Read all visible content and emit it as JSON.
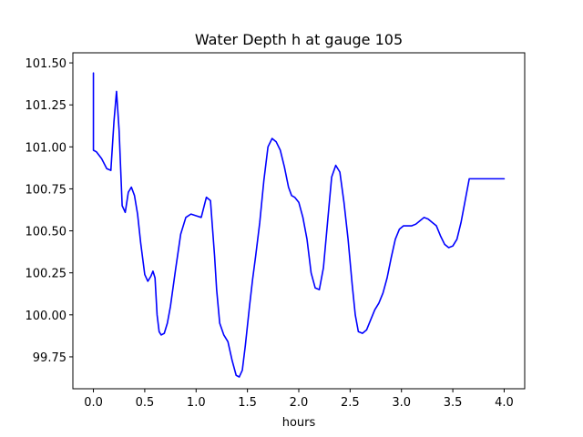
{
  "chart_data": {
    "type": "line",
    "title": "Water Depth h at gauge 105",
    "xlabel": "hours",
    "ylabel": "",
    "xlim": [
      -0.2,
      4.2
    ],
    "ylim": [
      99.56,
      101.56
    ],
    "xticks": [
      0.0,
      0.5,
      1.0,
      1.5,
      2.0,
      2.5,
      3.0,
      3.5,
      4.0
    ],
    "xtick_labels": [
      "0.0",
      "0.5",
      "1.0",
      "1.5",
      "2.0",
      "2.5",
      "3.0",
      "3.5",
      "4.0"
    ],
    "yticks": [
      99.75,
      100.0,
      100.25,
      100.5,
      100.75,
      101.0,
      101.25,
      101.5
    ],
    "ytick_labels": [
      "99.75",
      "100.00",
      "100.25",
      "100.50",
      "100.75",
      "101.00",
      "101.25",
      "101.50"
    ],
    "grid": false,
    "series": [
      {
        "color": "#0000ff",
        "x": [
          0.0,
          0.0,
          0.03,
          0.08,
          0.13,
          0.17,
          0.2,
          0.225,
          0.25,
          0.28,
          0.31,
          0.34,
          0.37,
          0.4,
          0.43,
          0.46,
          0.5,
          0.53,
          0.56,
          0.58,
          0.6,
          0.62,
          0.64,
          0.66,
          0.69,
          0.72,
          0.75,
          0.8,
          0.85,
          0.9,
          0.95,
          1.0,
          1.05,
          1.1,
          1.14,
          1.18,
          1.2,
          1.23,
          1.27,
          1.31,
          1.35,
          1.39,
          1.42,
          1.45,
          1.48,
          1.52,
          1.55,
          1.58,
          1.62,
          1.66,
          1.7,
          1.74,
          1.78,
          1.82,
          1.86,
          1.9,
          1.93,
          1.96,
          2.0,
          2.04,
          2.08,
          2.12,
          2.16,
          2.2,
          2.24,
          2.28,
          2.32,
          2.36,
          2.4,
          2.44,
          2.48,
          2.52,
          2.55,
          2.58,
          2.62,
          2.66,
          2.7,
          2.74,
          2.78,
          2.82,
          2.86,
          2.9,
          2.94,
          2.98,
          3.02,
          3.06,
          3.1,
          3.14,
          3.18,
          3.22,
          3.26,
          3.3,
          3.34,
          3.38,
          3.42,
          3.46,
          3.5,
          3.54,
          3.58,
          3.62,
          3.66,
          3.7,
          3.74,
          3.78,
          3.82,
          3.86,
          3.9,
          3.94,
          3.98,
          4.0
        ],
        "y": [
          101.44,
          100.98,
          100.97,
          100.93,
          100.87,
          100.86,
          101.15,
          101.33,
          101.1,
          100.65,
          100.61,
          100.73,
          100.76,
          100.71,
          100.6,
          100.43,
          100.24,
          100.2,
          100.23,
          100.26,
          100.22,
          100.0,
          99.9,
          99.88,
          99.89,
          99.95,
          100.05,
          100.27,
          100.48,
          100.58,
          100.6,
          100.59,
          100.58,
          100.7,
          100.68,
          100.35,
          100.15,
          99.95,
          99.88,
          99.84,
          99.73,
          99.64,
          99.63,
          99.67,
          99.82,
          100.05,
          100.21,
          100.35,
          100.55,
          100.8,
          101.0,
          101.05,
          101.03,
          100.98,
          100.88,
          100.76,
          100.71,
          100.7,
          100.67,
          100.58,
          100.45,
          100.25,
          100.16,
          100.15,
          100.28,
          100.55,
          100.82,
          100.89,
          100.85,
          100.67,
          100.45,
          100.18,
          100.0,
          99.9,
          99.89,
          99.91,
          99.97,
          100.03,
          100.07,
          100.13,
          100.22,
          100.34,
          100.45,
          100.51,
          100.53,
          100.53,
          100.53,
          100.54,
          100.56,
          100.58,
          100.57,
          100.55,
          100.53,
          100.47,
          100.42,
          100.4,
          100.41,
          100.45,
          100.55,
          100.68,
          100.81,
          100.81,
          100.81,
          100.81,
          100.81,
          100.81,
          100.81,
          100.81,
          100.81,
          100.81
        ]
      }
    ]
  }
}
